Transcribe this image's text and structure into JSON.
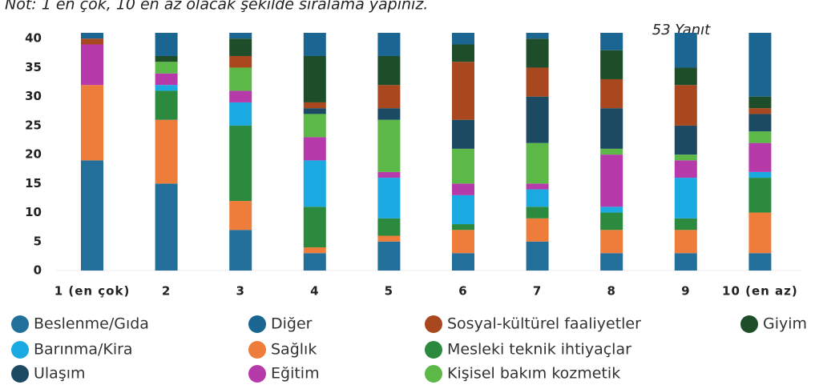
{
  "chart_data": {
    "type": "stacked_bar",
    "title": "Not: 1 en çok, 10 en az olacak şekilde sıralama yapınız.",
    "subtitle": "53 Yanıt",
    "categories": [
      "1 (en çok)",
      "2",
      "3",
      "4",
      "5",
      "6",
      "7",
      "8",
      "9",
      "10 (en az)"
    ],
    "ylim": [
      0,
      41
    ],
    "yticks": [
      0,
      5,
      10,
      15,
      20,
      25,
      30,
      35,
      40
    ],
    "series": [
      {
        "name": "Beslenme/Gıda",
        "color": "#22709a",
        "values": [
          19,
          15,
          7,
          3,
          5,
          3,
          5,
          3,
          3,
          3
        ]
      },
      {
        "name": "Sağlık",
        "color": "#ee7d3b",
        "values": [
          13,
          11,
          5,
          1,
          1,
          4,
          4,
          4,
          4,
          7
        ]
      },
      {
        "name": "Mesleki teknik ihtiyaçlar",
        "color": "#2b8a3e",
        "values": [
          0,
          5,
          13,
          7,
          3,
          1,
          2,
          3,
          2,
          6
        ]
      },
      {
        "name": "Barınma/Kira",
        "color": "#1ba9e1",
        "values": [
          0,
          1,
          4,
          8,
          7,
          5,
          3,
          1,
          7,
          1
        ]
      },
      {
        "name": "Eğitim",
        "color": "#b63aa9",
        "values": [
          7,
          2,
          2,
          4,
          1,
          2,
          1,
          9,
          3,
          5
        ]
      },
      {
        "name": "Kişisel bakım kozmetik",
        "color": "#5cb947",
        "values": [
          0,
          2,
          4,
          4,
          9,
          6,
          7,
          1,
          1,
          2
        ]
      },
      {
        "name": "Ulaşım",
        "color": "#1c4a63",
        "values": [
          0,
          0,
          0,
          1,
          2,
          5,
          8,
          7,
          5,
          3
        ]
      },
      {
        "name": "Sosyal-kültürel faaliyetler",
        "color": "#a9481f",
        "values": [
          1,
          0,
          2,
          1,
          4,
          10,
          5,
          5,
          7,
          1
        ]
      },
      {
        "name": "Giyim",
        "color": "#1e4e29",
        "values": [
          0,
          1,
          3,
          8,
          5,
          3,
          5,
          5,
          3,
          2
        ]
      },
      {
        "name": "Diğer",
        "color": "#1b6592",
        "values": [
          1,
          4,
          1,
          4,
          4,
          2,
          1,
          3,
          6,
          11
        ]
      }
    ]
  }
}
